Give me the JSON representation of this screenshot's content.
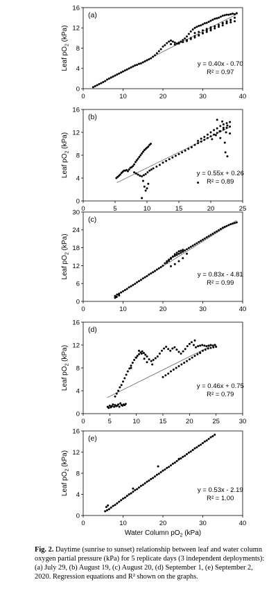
{
  "chart_data": [
    {
      "type": "scatter",
      "panel_label": "(a)",
      "ylabel_main": "Leaf pO",
      "ylabel_sub": "2",
      "ylabel_unit": " (kPa)",
      "xlim": [
        0,
        40
      ],
      "ylim": [
        0,
        16
      ],
      "xticks": [
        0,
        10,
        20,
        30,
        40
      ],
      "yticks": [
        0,
        4,
        8,
        12,
        16
      ],
      "equation": "y = 0.40x - 0.70",
      "r2_text": "R² = 0.97",
      "trend": {
        "x": [
          2.5,
          38.5
        ],
        "y": [
          0.3,
          14.7
        ]
      },
      "points": {
        "x": [
          2.5,
          3,
          3.5,
          4,
          4.5,
          5,
          5.5,
          6,
          6.5,
          7,
          7.5,
          8,
          8.5,
          9,
          9.5,
          10,
          10.5,
          11,
          11.5,
          12,
          12.5,
          13,
          13.5,
          14,
          14.5,
          15,
          15.5,
          16,
          16.5,
          17,
          17.5,
          18,
          18.5,
          19,
          19.5,
          20,
          20.5,
          21,
          21.5,
          22,
          22.5,
          23,
          23.5,
          24,
          24.5,
          25,
          25.5,
          26,
          26.5,
          27,
          27.5,
          28,
          28.5,
          29,
          29.5,
          30,
          30.5,
          31,
          31.5,
          32,
          32.5,
          33,
          33.5,
          34,
          34.5,
          35,
          35.5,
          36,
          36.5,
          37,
          37.5,
          38,
          38.5,
          22,
          23,
          24,
          25,
          26,
          27,
          28,
          29,
          30,
          31,
          32,
          33,
          34,
          35,
          36,
          37,
          38,
          26,
          27,
          28,
          29,
          30,
          31,
          32,
          33,
          34,
          35,
          36,
          37,
          38,
          28,
          29,
          30,
          31,
          32,
          33,
          34,
          35,
          36,
          37
        ],
        "y": [
          0.3,
          0.5,
          0.7,
          0.9,
          1.1,
          1.3,
          1.5,
          1.8,
          2.0,
          2.2,
          2.4,
          2.6,
          2.8,
          3.0,
          3.2,
          3.4,
          3.6,
          3.8,
          4.0,
          4.2,
          4.4,
          4.6,
          4.7,
          4.9,
          5.0,
          5.2,
          5.4,
          5.6,
          5.8,
          6.0,
          6.3,
          6.6,
          7.0,
          7.4,
          7.8,
          8.3,
          8.6,
          9.0,
          9.3,
          9.5,
          9.3,
          9.1,
          8.9,
          9.1,
          9.3,
          9.6,
          9.9,
          10.3,
          10.8,
          11.3,
          11.7,
          12.0,
          12.2,
          12.4,
          12.5,
          12.7,
          12.9,
          13.0,
          13.2,
          13.4,
          13.6,
          13.8,
          13.9,
          14.0,
          14.2,
          14.4,
          14.5,
          14.6,
          14.6,
          14.7,
          14.8,
          14.7,
          14.9,
          8.8,
          8.7,
          8.9,
          9.2,
          9.6,
          10.0,
          10.4,
          10.6,
          11.0,
          11.5,
          11.8,
          12.3,
          12.6,
          13.0,
          13.3,
          13.6,
          14.0,
          9.4,
          9.8,
          10.1,
          10.5,
          10.9,
          11.2,
          11.5,
          11.9,
          12.2,
          12.5,
          12.9,
          13.1,
          13.3,
          11.0,
          11.2,
          11.5,
          11.8,
          12.1,
          12.3,
          12.6,
          12.9,
          13.2,
          13.5
        ]
      }
    },
    {
      "type": "scatter",
      "panel_label": "(b)",
      "ylabel_main": "Leaf pO",
      "ylabel_sub": "2",
      "ylabel_unit": " (kPa)",
      "xlim": [
        0,
        25
      ],
      "ylim": [
        0,
        16
      ],
      "xticks": [
        0,
        5,
        10,
        15,
        20,
        25
      ],
      "yticks": [
        0,
        4,
        8,
        12,
        16
      ],
      "equation": "y = 0.55x + 0.26",
      "r2_text": "R² = 0.89",
      "trend": {
        "x": [
          5.3,
          23
        ],
        "y": [
          3.2,
          12.9
        ]
      },
      "points": {
        "x": [
          5.2,
          5.4,
          5.6,
          5.8,
          6.0,
          6.2,
          6.4,
          6.6,
          6.8,
          7.0,
          7.2,
          7.4,
          7.6,
          7.8,
          8.0,
          8.2,
          8.4,
          8.6,
          8.8,
          9.0,
          9.2,
          9.4,
          9.6,
          9.8,
          10.0,
          10.2,
          10.4,
          10.6,
          8.0,
          8.3,
          8.6,
          8.9,
          9.2,
          9.5,
          9.8,
          10.1,
          10.4,
          10.7,
          11.0,
          11.5,
          12.0,
          12.5,
          13.0,
          13.5,
          14.0,
          14.5,
          15.0,
          15.5,
          16.0,
          16.5,
          17.0,
          17.5,
          18.0,
          18.5,
          19.0,
          19.5,
          20.0,
          20.5,
          21.0,
          21.5,
          22.0,
          22.5,
          23.0,
          9.4,
          9.6,
          9.8,
          10.0,
          10.2,
          9.2,
          18.0,
          18.5,
          19.0,
          19.5,
          20.0,
          20.5,
          21.0,
          21.5,
          22.0,
          22.5,
          23.0,
          20.2,
          20.8,
          21.4,
          22.0,
          22.6,
          21.0,
          21.8,
          22.4,
          23.0,
          21.5,
          22.2,
          18.0,
          22.3,
          22.6
        ],
        "y": [
          4.0,
          4.2,
          4.4,
          4.6,
          4.9,
          5.1,
          5.3,
          5.3,
          5.4,
          5.2,
          5.5,
          5.8,
          5.9,
          6.1,
          6.4,
          6.8,
          7.1,
          7.4,
          7.7,
          8.0,
          8.3,
          8.6,
          8.9,
          9.1,
          9.3,
          9.5,
          9.8,
          10.0,
          5.0,
          4.8,
          4.6,
          4.4,
          4.3,
          4.5,
          4.7,
          5.0,
          5.3,
          5.5,
          5.7,
          6.0,
          6.3,
          6.7,
          7.0,
          7.3,
          7.6,
          7.9,
          8.2,
          8.5,
          8.8,
          9.1,
          9.4,
          9.8,
          10.1,
          10.4,
          10.7,
          11.0,
          11.3,
          11.6,
          11.9,
          12.2,
          12.5,
          12.8,
          13.0,
          3.5,
          2.5,
          1.8,
          2.2,
          3.0,
          0.5,
          10.5,
          10.9,
          11.2,
          11.6,
          12.0,
          12.4,
          12.7,
          13.1,
          13.4,
          13.6,
          13.8,
          10.8,
          11.5,
          12.2,
          12.8,
          13.2,
          14.2,
          13.9,
          12.0,
          11.8,
          11.0,
          10.2,
          3.2,
          8.5,
          7.8
        ]
      }
    },
    {
      "type": "scatter",
      "panel_label": "(c)",
      "ylabel_main": "Leaf pO",
      "ylabel_sub": "2",
      "ylabel_unit": " (kPa)",
      "xlim": [
        0,
        40
      ],
      "ylim": [
        0,
        30
      ],
      "xticks": [
        0,
        10,
        20,
        30,
        40
      ],
      "yticks": [
        0,
        6,
        12,
        18,
        24,
        30
      ],
      "equation": "y = 0.83x - 4.81",
      "r2_text": "R² = 0.99",
      "trend": {
        "x": [
          8,
          38.5
        ],
        "y": [
          1.8,
          27.2
        ]
      },
      "points": {
        "x": [
          8.0,
          8.5,
          9.0,
          9.5,
          10.0,
          10.5,
          11.0,
          11.5,
          12.0,
          12.5,
          13.0,
          13.5,
          14.0,
          14.5,
          15.0,
          15.5,
          16.0,
          16.5,
          17.0,
          17.5,
          18.0,
          18.5,
          19.0,
          19.5,
          20.0,
          20.5,
          21.0,
          21.5,
          22.0,
          22.5,
          23.0,
          23.5,
          24.0,
          24.5,
          25.0,
          25.5,
          26.0,
          26.5,
          27.0,
          27.5,
          28.0,
          28.5,
          29.0,
          29.5,
          30.0,
          30.5,
          31.0,
          31.5,
          32.0,
          32.5,
          33.0,
          33.5,
          34.0,
          34.5,
          35.0,
          35.5,
          36.0,
          36.5,
          37.0,
          37.5,
          38.0,
          38.5,
          21.0,
          21.5,
          22.0,
          22.5,
          23.0,
          23.5,
          24.0,
          24.5,
          25.0,
          22.0,
          23.0,
          24.0,
          25.0,
          26.0,
          8.0,
          8.4,
          9.0
        ],
        "y": [
          1.8,
          2.3,
          2.6,
          3.0,
          3.4,
          3.8,
          4.2,
          4.7,
          5.1,
          5.5,
          5.9,
          6.4,
          6.8,
          7.2,
          7.7,
          8.1,
          8.5,
          9.0,
          9.4,
          9.8,
          10.2,
          10.7,
          11.1,
          11.5,
          12.0,
          12.8,
          13.5,
          14.0,
          14.6,
          15.0,
          15.3,
          15.6,
          16.0,
          16.3,
          16.7,
          17.1,
          17.5,
          17.9,
          18.3,
          18.7,
          19.1,
          19.5,
          19.9,
          20.3,
          20.7,
          21.1,
          21.5,
          21.9,
          22.3,
          22.7,
          23.1,
          23.5,
          23.9,
          24.3,
          24.7,
          25.0,
          25.3,
          25.6,
          25.9,
          26.1,
          26.3,
          26.5,
          13.0,
          13.6,
          14.3,
          15.1,
          15.8,
          16.3,
          16.8,
          17.0,
          17.3,
          11.8,
          12.5,
          13.5,
          14.5,
          16.0,
          1.2,
          1.5,
          2.0
        ]
      }
    },
    {
      "type": "scatter",
      "panel_label": "(d)",
      "ylabel_main": "Leaf pO",
      "ylabel_sub": "2",
      "ylabel_unit": " (kPa)",
      "xlim": [
        0,
        30
      ],
      "ylim": [
        0,
        16
      ],
      "xticks": [
        0,
        5,
        10,
        15,
        20,
        25,
        30
      ],
      "yticks": [
        0,
        4,
        8,
        12,
        16
      ],
      "equation": "y = 0.46x + 0.75",
      "r2_text": "R² = 0.79",
      "trend": {
        "x": [
          4.5,
          24.8
        ],
        "y": [
          2.8,
          12.2
        ]
      },
      "points": {
        "x": [
          4.6,
          4.8,
          5.0,
          5.2,
          5.4,
          5.6,
          5.8,
          6.0,
          6.2,
          6.4,
          6.6,
          6.8,
          7.0,
          7.2,
          7.4,
          7.6,
          7.8,
          8.0,
          6.0,
          6.3,
          6.6,
          6.9,
          7.2,
          7.5,
          7.8,
          8.1,
          8.4,
          8.7,
          9.0,
          9.3,
          9.6,
          9.9,
          10.2,
          10.5,
          10.8,
          11.1,
          11.4,
          11.7,
          12.0,
          12.4,
          12.8,
          13.2,
          13.6,
          14.0,
          14.4,
          14.8,
          15.2,
          15.6,
          16.0,
          16.4,
          16.8,
          17.2,
          17.6,
          18.0,
          18.4,
          18.8,
          19.2,
          19.6,
          20.0,
          20.4,
          20.8,
          21.2,
          21.6,
          22.0,
          22.4,
          22.8,
          23.2,
          23.6,
          24.0,
          24.4,
          24.8,
          15.0,
          15.5,
          16.0,
          16.5,
          17.0,
          17.5,
          18.0,
          18.5,
          19.0,
          19.5,
          20.0,
          20.5,
          21.0,
          21.5,
          22.0,
          22.5,
          23.0,
          23.5,
          24.0,
          24.5,
          25.0,
          9.0,
          10.0,
          11.0,
          12.0,
          13.0,
          21.0,
          22.0,
          10.5,
          11.5
        ],
        "y": [
          1.2,
          1.0,
          1.4,
          1.1,
          1.3,
          1.6,
          1.2,
          1.5,
          1.3,
          1.4,
          1.6,
          1.2,
          1.8,
          1.5,
          1.4,
          1.6,
          1.5,
          1.7,
          3.0,
          3.5,
          4.0,
          4.6,
          5.0,
          5.6,
          6.2,
          6.8,
          7.4,
          7.9,
          8.4,
          8.9,
          9.4,
          9.8,
          10.1,
          10.4,
          10.7,
          10.9,
          10.6,
          10.3,
          10.0,
          9.5,
          9.2,
          9.4,
          9.7,
          10.0,
          10.5,
          11.0,
          11.4,
          11.7,
          11.3,
          11.0,
          11.4,
          11.6,
          11.2,
          10.8,
          10.5,
          10.9,
          11.3,
          11.8,
          12.2,
          12.5,
          12.0,
          11.6,
          11.8,
          11.9,
          12.0,
          11.9,
          11.8,
          11.9,
          12.0,
          11.9,
          12.0,
          6.4,
          6.7,
          7.0,
          7.4,
          7.7,
          8.0,
          8.3,
          8.6,
          8.9,
          9.2,
          9.5,
          9.8,
          10.1,
          10.4,
          10.7,
          11.0,
          11.2,
          11.4,
          11.5,
          11.6,
          11.7,
          8.0,
          9.8,
          10.5,
          9.0,
          8.6,
          12.8,
          10.6,
          11.0,
          9.6
        ]
      }
    },
    {
      "type": "scatter",
      "panel_label": "(e)",
      "ylabel_main": "Leaf pO",
      "ylabel_sub": "2",
      "ylabel_unit": " (kPa)",
      "xlabel_main": "Water Column pO",
      "xlabel_sub": "2",
      "xlabel_unit": "  (kPa)",
      "xlim": [
        0,
        40
      ],
      "ylim": [
        0,
        16
      ],
      "xticks": [
        0,
        10,
        20,
        30,
        40
      ],
      "yticks": [
        0,
        4,
        8,
        12,
        16
      ],
      "equation": "y = 0.53x - 2.19",
      "r2_text": "R² = 1.00",
      "trend": {
        "x": [
          5.5,
          33
        ],
        "y": [
          0.7,
          15.3
        ]
      },
      "points": {
        "x": [
          5.5,
          6.0,
          6.5,
          7.0,
          7.5,
          8.0,
          8.5,
          9.0,
          9.5,
          10.0,
          10.5,
          11.0,
          11.5,
          12.0,
          12.5,
          13.0,
          13.5,
          14.0,
          14.5,
          15.0,
          15.5,
          16.0,
          16.5,
          17.0,
          17.5,
          18.0,
          18.5,
          19.0,
          19.5,
          20.0,
          20.5,
          21.0,
          21.5,
          22.0,
          22.5,
          23.0,
          23.5,
          24.0,
          24.5,
          25.0,
          25.5,
          26.0,
          26.5,
          27.0,
          27.5,
          28.0,
          28.5,
          29.0,
          29.5,
          30.0,
          30.5,
          31.0,
          31.5,
          32.0,
          32.5,
          33.0,
          5.8,
          6.2,
          12.5,
          18.8,
          24.0
        ],
        "y": [
          0.8,
          1.0,
          1.2,
          1.5,
          1.8,
          2.0,
          2.3,
          2.6,
          2.9,
          3.2,
          3.4,
          3.7,
          4.0,
          4.2,
          4.5,
          4.8,
          5.0,
          5.3,
          5.6,
          5.8,
          6.1,
          6.4,
          6.6,
          6.9,
          7.1,
          7.4,
          7.7,
          7.9,
          8.2,
          8.5,
          8.7,
          9.0,
          9.2,
          9.5,
          9.8,
          10.0,
          10.3,
          10.6,
          10.8,
          11.1,
          11.3,
          11.6,
          11.9,
          12.1,
          12.4,
          12.7,
          12.9,
          13.2,
          13.4,
          13.7,
          14.0,
          14.2,
          14.5,
          14.8,
          15.0,
          15.3,
          1.6,
          1.9,
          5.1,
          9.3,
          10.7
        ]
      }
    }
  ],
  "caption": {
    "label": "Fig. 2.",
    "text": " Daytime (sunrise to sunset) relationship between leaf and water column oxygen partial pressure (kPa) for 5 replicate days (3 independent deployments): (a) July 29, (b) August 19, (c) August 20, (d) September 1, (e) September 2, 2020. Regression equations and R² shown on the graphs."
  }
}
